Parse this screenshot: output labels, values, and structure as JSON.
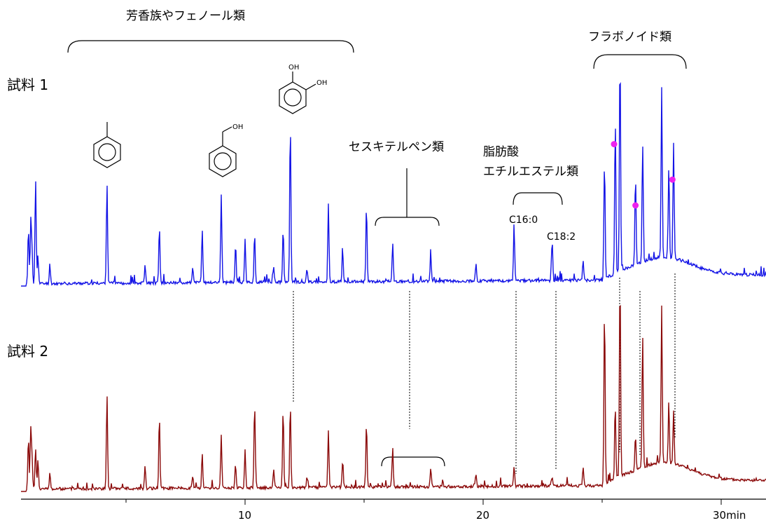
{
  "colors": {
    "sample1": "#1414e6",
    "sample2": "#8b0a0a",
    "marker": "#ee22ee",
    "axis": "#000000"
  },
  "labels": {
    "sample1": "試料 1",
    "sample2": "試料 2",
    "group_aromatic": "芳香族やフェノール類",
    "group_flavonoid": "フラボノイド類",
    "group_sesquiterpene": "セスキテルペン類",
    "group_fatty_line1": "脂肪酸",
    "group_fatty_line2": "エチルエステル類",
    "peak_c16": "C16:0",
    "peak_c18": "C18:2",
    "oh": "OH"
  },
  "chart_data": {
    "type": "line",
    "xlabel": "",
    "ylabel": "",
    "xlim": [
      -0.5,
      31.5
    ],
    "xticks": [
      {
        "value": 10,
        "label": "10"
      },
      {
        "value": 20,
        "label": "20"
      },
      {
        "value": 30,
        "label": "30min"
      }
    ],
    "grid": false,
    "series": [
      {
        "name": "試料 1",
        "baseline_offset": 0,
        "peaks": [
          [
            0.9,
            0.35
          ],
          [
            1.0,
            0.38
          ],
          [
            1.05,
            0.2
          ],
          [
            1.2,
            0.65
          ],
          [
            1.3,
            0.18
          ],
          [
            1.8,
            0.12
          ],
          [
            4.2,
            0.63
          ],
          [
            5.8,
            0.12
          ],
          [
            6.4,
            0.35
          ],
          [
            7.8,
            0.1
          ],
          [
            8.2,
            0.33
          ],
          [
            9.0,
            0.55
          ],
          [
            9.6,
            0.2
          ],
          [
            10.0,
            0.27
          ],
          [
            10.4,
            0.3
          ],
          [
            11.2,
            0.1
          ],
          [
            11.6,
            0.33
          ],
          [
            11.9,
            1.0
          ],
          [
            12.6,
            0.08
          ],
          [
            13.5,
            0.48
          ],
          [
            14.1,
            0.18
          ],
          [
            15.1,
            0.47
          ],
          [
            16.2,
            0.24
          ],
          [
            17.8,
            0.15
          ],
          [
            19.7,
            0.11
          ],
          [
            21.3,
            0.35
          ],
          [
            22.9,
            0.25
          ],
          [
            24.2,
            0.13
          ],
          [
            25.1,
            0.73
          ],
          [
            25.55,
            0.95
          ],
          [
            25.75,
            1.38
          ],
          [
            26.4,
            0.55
          ],
          [
            26.7,
            0.74
          ],
          [
            27.5,
            1.06
          ],
          [
            27.8,
            0.55
          ],
          [
            28.0,
            0.72
          ]
        ],
        "markers": [
          [
            25.5,
            0.88
          ],
          [
            26.4,
            0.5
          ],
          [
            27.95,
            0.66
          ]
        ]
      },
      {
        "name": "試料 2",
        "baseline_offset": 0,
        "peaks": [
          [
            0.9,
            0.32
          ],
          [
            1.0,
            0.36
          ],
          [
            1.05,
            0.18
          ],
          [
            1.2,
            0.26
          ],
          [
            1.3,
            0.18
          ],
          [
            1.8,
            0.1
          ],
          [
            4.2,
            0.58
          ],
          [
            5.8,
            0.14
          ],
          [
            6.4,
            0.45
          ],
          [
            7.8,
            0.08
          ],
          [
            8.2,
            0.21
          ],
          [
            9.0,
            0.33
          ],
          [
            9.6,
            0.15
          ],
          [
            10.0,
            0.23
          ],
          [
            10.4,
            0.52
          ],
          [
            11.2,
            0.12
          ],
          [
            11.6,
            0.49
          ],
          [
            11.9,
            0.52
          ],
          [
            12.6,
            0.06
          ],
          [
            13.5,
            0.35
          ],
          [
            14.1,
            0.17
          ],
          [
            15.1,
            0.4
          ],
          [
            16.2,
            0.24
          ],
          [
            17.8,
            0.12
          ],
          [
            19.7,
            0.08
          ],
          [
            21.3,
            0.12
          ],
          [
            22.9,
            0.05
          ],
          [
            24.2,
            0.11
          ],
          [
            25.1,
            1.1
          ],
          [
            25.55,
            0.45
          ],
          [
            25.75,
            1.26
          ],
          [
            26.4,
            0.22
          ],
          [
            26.7,
            0.83
          ],
          [
            27.5,
            0.98
          ],
          [
            27.8,
            0.38
          ],
          [
            28.0,
            0.32
          ]
        ]
      }
    ],
    "annotations": [
      "芳香族やフェノール類",
      "フラボノイド類",
      "セスキテルペン類",
      "脂肪酸",
      "エチルエステル類",
      "C16:0",
      "C18:2"
    ]
  }
}
